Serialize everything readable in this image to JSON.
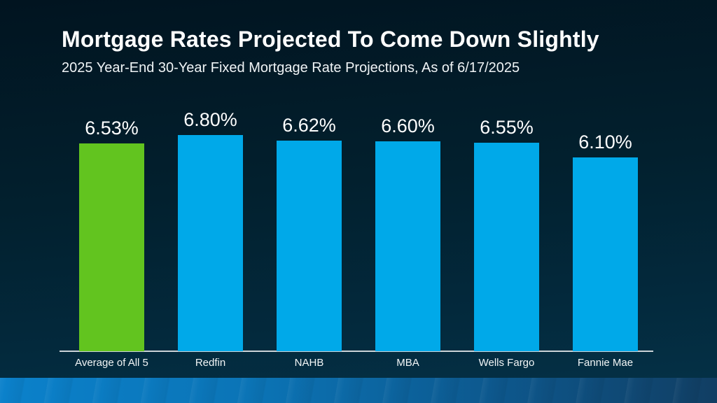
{
  "slide": {
    "title": "Mortgage Rates Projected To Come Down Slightly",
    "subtitle": "2025 Year-End 30-Year Fixed Mortgage Rate Projections, As of 6/17/2025"
  },
  "chart_data": {
    "type": "bar",
    "title": "Mortgage Rates Projected To Come Down Slightly",
    "subtitle": "2025 Year-End 30-Year Fixed Mortgage Rate Projections, As of 6/17/2025",
    "categories": [
      "Average of All 5",
      "Redfin",
      "NAHB",
      "MBA",
      "Wells Fargo",
      "Fannie Mae"
    ],
    "values": [
      6.53,
      6.8,
      6.62,
      6.6,
      6.55,
      6.1
    ],
    "value_labels": [
      "6.53%",
      "6.80%",
      "6.62%",
      "6.60%",
      "6.55%",
      "6.10%"
    ],
    "bar_colors": [
      "#62c41f",
      "#00a9e9",
      "#00a9e9",
      "#00a9e9",
      "#00a9e9",
      "#00a9e9"
    ],
    "xlabel": "",
    "ylabel": "",
    "ylim": [
      0,
      6.8
    ],
    "grid": false,
    "legend": false,
    "data_labels_shown": true
  },
  "colors": {
    "background_top": "#011420",
    "background_bottom": "#043248",
    "highlight_green": "#62c41f",
    "series_blue": "#00a9e9",
    "axis_line": "#ccd4d8",
    "text": "#ffffff",
    "footer_gradient_left": "#0b81cb",
    "footer_gradient_right": "#113e63"
  }
}
